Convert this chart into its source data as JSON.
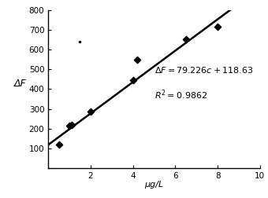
{
  "x_data": [
    0.5,
    1.0,
    1.1,
    2.0,
    4.0,
    4.2,
    6.5,
    8.0
  ],
  "y_data": [
    120,
    215,
    220,
    285,
    445,
    550,
    650,
    715
  ],
  "outlier_x": 1.5,
  "outlier_y": 640,
  "slope": 79.226,
  "intercept": 118.63,
  "r2": 0.9862,
  "xlim": [
    0,
    10
  ],
  "ylim": [
    0,
    800
  ],
  "xticks": [
    0,
    2,
    4,
    6,
    8,
    10
  ],
  "yticks": [
    0,
    100,
    200,
    300,
    400,
    500,
    600,
    700,
    800
  ],
  "xlabel": "μg/L",
  "ylabel": "ΔF",
  "bg_color": "#ffffff",
  "line_color": "#000000",
  "marker_color": "#000000",
  "text_color": "#000000",
  "fit_line_x": [
    0.0,
    8.6
  ]
}
